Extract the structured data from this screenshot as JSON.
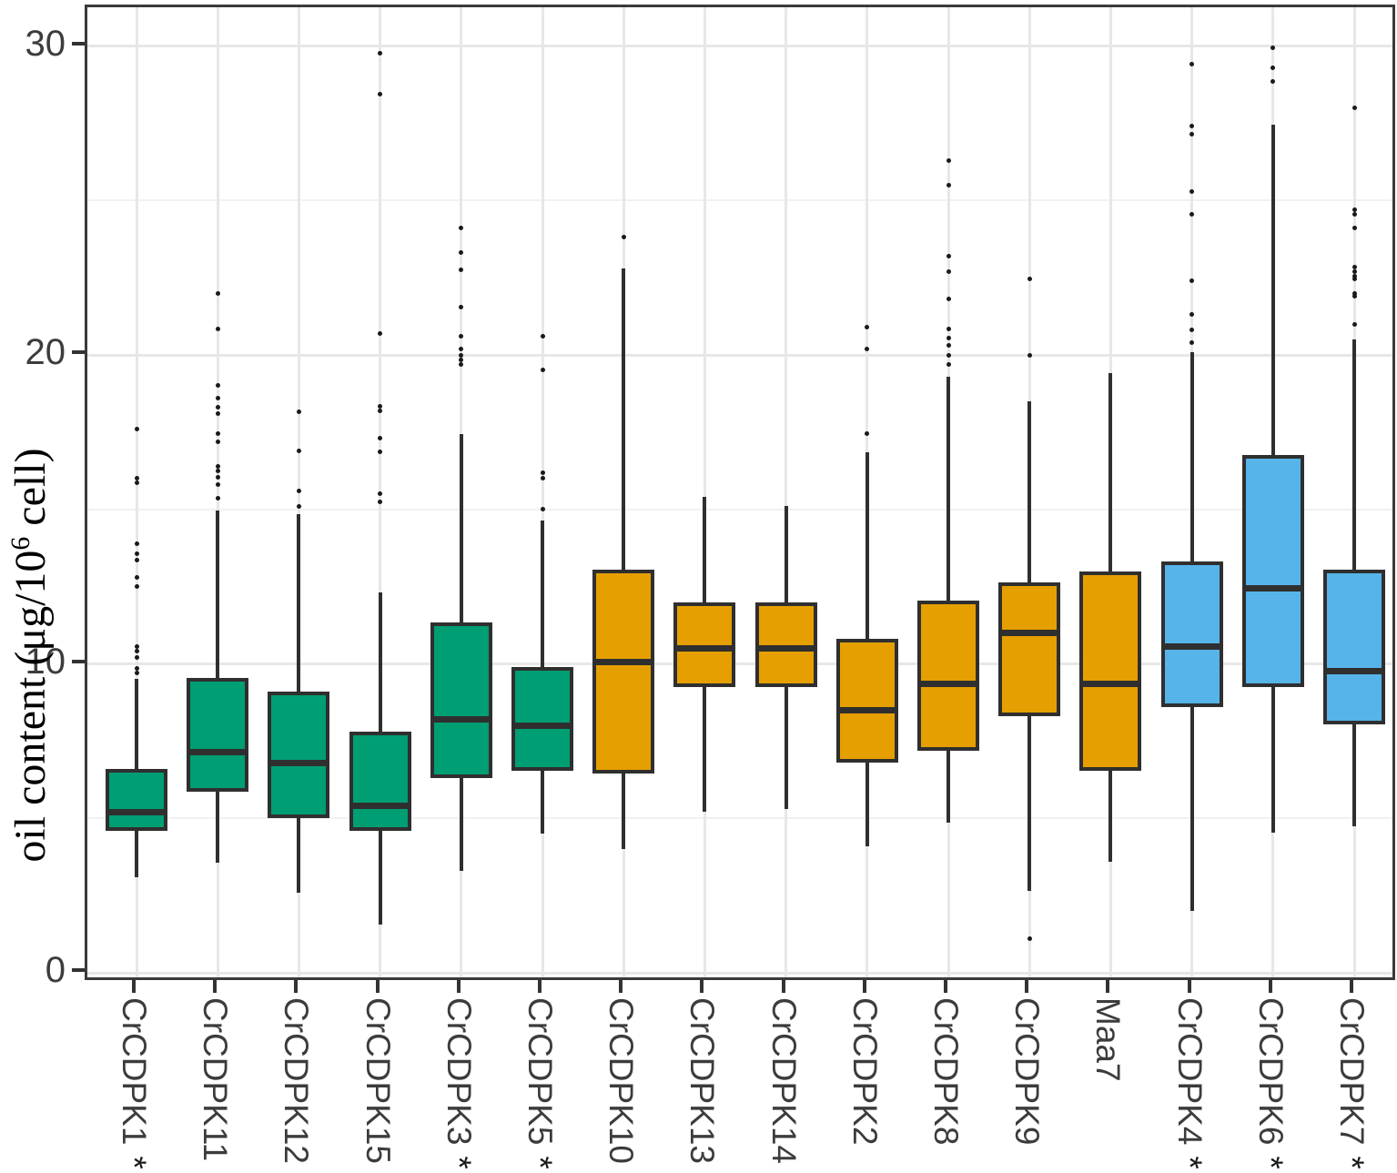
{
  "chart_data": {
    "type": "boxplot",
    "title": "",
    "ylabel": "oil content (μg/10⁶ cell)",
    "ylabel_parts": {
      "pre": "oil content (μg/10",
      "sup": "6",
      "post": " cell)"
    },
    "xlabel": "",
    "ylim": [
      0,
      31.2
    ],
    "yticks": [
      0,
      10,
      20,
      30
    ],
    "yminor": [
      5,
      15,
      25
    ],
    "grid": "major-and-minor-horizontal, vertical-at-categories",
    "legend_position": "none",
    "significance_marker": "**",
    "colors": {
      "group_green": "#009E73",
      "group_orange": "#E69F00",
      "group_blue": "#56B4E9",
      "stroke": "#2F2F2F",
      "grid_major": "#E7E7E7",
      "grid_minor": "#F1F1F1",
      "axis_text": "#3C3C3C",
      "panel_border": "#3A3A3A",
      "outlier": "#1A1A1A"
    },
    "categories": [
      {
        "label": "CrCDPK1",
        "sig": "**",
        "group": "group_green",
        "q1": 4.6,
        "median": 5.2,
        "q3": 6.6,
        "whisker_low": 3.1,
        "whisker_high": 9.5,
        "outliers": [
          17.6,
          16.0,
          15.85,
          13.9,
          13.55,
          13.35,
          12.8,
          12.5,
          10.55,
          10.4,
          10.2,
          9.85,
          9.7
        ]
      },
      {
        "label": "CrCDPK11",
        "sig": "**",
        "group": "group_green",
        "q1": 5.85,
        "median": 7.15,
        "q3": 9.55,
        "whisker_low": 3.55,
        "whisker_high": 14.95,
        "outliers": [
          22.0,
          20.85,
          19.0,
          18.6,
          18.3,
          18.1,
          17.45,
          17.2,
          16.4,
          16.25,
          16.05,
          15.8,
          15.35
        ]
      },
      {
        "label": "CrCDPK12",
        "sig": "**",
        "group": "group_green",
        "q1": 5.0,
        "median": 6.8,
        "q3": 9.1,
        "whisker_low": 2.6,
        "whisker_high": 14.85,
        "outliers": [
          18.15,
          16.9,
          15.6,
          15.1
        ]
      },
      {
        "label": "CrCDPK15",
        "sig": "**",
        "group": "group_green",
        "q1": 4.6,
        "median": 5.4,
        "q3": 7.8,
        "whisker_low": 1.55,
        "whisker_high": 12.3,
        "outliers": [
          29.75,
          28.45,
          20.7,
          18.35,
          18.2,
          17.3,
          16.85,
          15.5,
          15.25
        ]
      },
      {
        "label": "CrCDPK3",
        "sig": "**",
        "group": "group_green",
        "q1": 6.3,
        "median": 8.2,
        "q3": 11.35,
        "whisker_low": 3.3,
        "whisker_high": 17.45,
        "outliers": [
          24.1,
          23.3,
          22.75,
          21.55,
          20.6,
          20.2,
          20.0,
          19.85,
          19.7
        ]
      },
      {
        "label": "CrCDPK5",
        "sig": "**",
        "group": "group_green",
        "q1": 6.55,
        "median": 8.0,
        "q3": 9.9,
        "whisker_low": 4.5,
        "whisker_high": 14.65,
        "outliers": [
          20.6,
          19.5,
          16.2,
          16.0,
          15.0
        ]
      },
      {
        "label": "CrCDPK10",
        "sig": "",
        "group": "group_orange",
        "q1": 6.45,
        "median": 10.05,
        "q3": 13.05,
        "whisker_low": 4.0,
        "whisker_high": 22.8,
        "outliers": [
          23.8
        ]
      },
      {
        "label": "CrCDPK13",
        "sig": "",
        "group": "group_orange",
        "q1": 9.25,
        "median": 10.5,
        "q3": 12.0,
        "whisker_low": 5.2,
        "whisker_high": 15.4,
        "outliers": []
      },
      {
        "label": "CrCDPK14",
        "sig": "",
        "group": "group_orange",
        "q1": 9.25,
        "median": 10.5,
        "q3": 12.0,
        "whisker_low": 5.3,
        "whisker_high": 15.1,
        "outliers": []
      },
      {
        "label": "CrCDPK2",
        "sig": "",
        "group": "group_orange",
        "q1": 6.8,
        "median": 8.5,
        "q3": 10.8,
        "whisker_low": 4.1,
        "whisker_high": 16.85,
        "outliers": [
          20.9,
          20.2,
          17.45
        ]
      },
      {
        "label": "CrCDPK8",
        "sig": "",
        "group": "group_orange",
        "q1": 7.2,
        "median": 9.35,
        "q3": 12.05,
        "whisker_low": 4.85,
        "whisker_high": 19.3,
        "outliers": [
          26.3,
          25.5,
          23.2,
          22.7,
          21.8,
          20.85,
          20.55,
          20.3,
          20.0,
          19.7
        ]
      },
      {
        "label": "CrCDPK9",
        "sig": "",
        "group": "group_orange",
        "q1": 8.3,
        "median": 11.0,
        "q3": 12.65,
        "whisker_low": 2.65,
        "whisker_high": 18.5,
        "outliers": [
          22.45,
          20.0,
          1.1
        ]
      },
      {
        "label": "Maa7",
        "sig": "",
        "group": "group_orange",
        "q1": 6.55,
        "median": 9.35,
        "q3": 13.0,
        "whisker_low": 3.6,
        "whisker_high": 19.4,
        "outliers": []
      },
      {
        "label": "CrCDPK4",
        "sig": "**",
        "group": "group_blue",
        "q1": 8.6,
        "median": 10.55,
        "q3": 13.3,
        "whisker_low": 2.0,
        "whisker_high": 20.1,
        "outliers": [
          29.4,
          27.4,
          27.15,
          25.3,
          24.55,
          22.4,
          21.3,
          20.8,
          20.4
        ]
      },
      {
        "label": "CrCDPK6",
        "sig": "**",
        "group": "group_blue",
        "q1": 9.25,
        "median": 12.45,
        "q3": 16.75,
        "whisker_low": 4.55,
        "whisker_high": 27.45,
        "outliers": [
          29.95,
          29.3,
          28.85
        ]
      },
      {
        "label": "CrCDPK7",
        "sig": "**",
        "group": "group_blue",
        "q1": 8.05,
        "median": 9.75,
        "q3": 13.05,
        "whisker_low": 4.75,
        "whisker_high": 20.5,
        "outliers": [
          28.0,
          24.7,
          24.55,
          24.1,
          22.85,
          22.7,
          22.55,
          22.45,
          22.0,
          21.9,
          21.0
        ]
      }
    ]
  }
}
